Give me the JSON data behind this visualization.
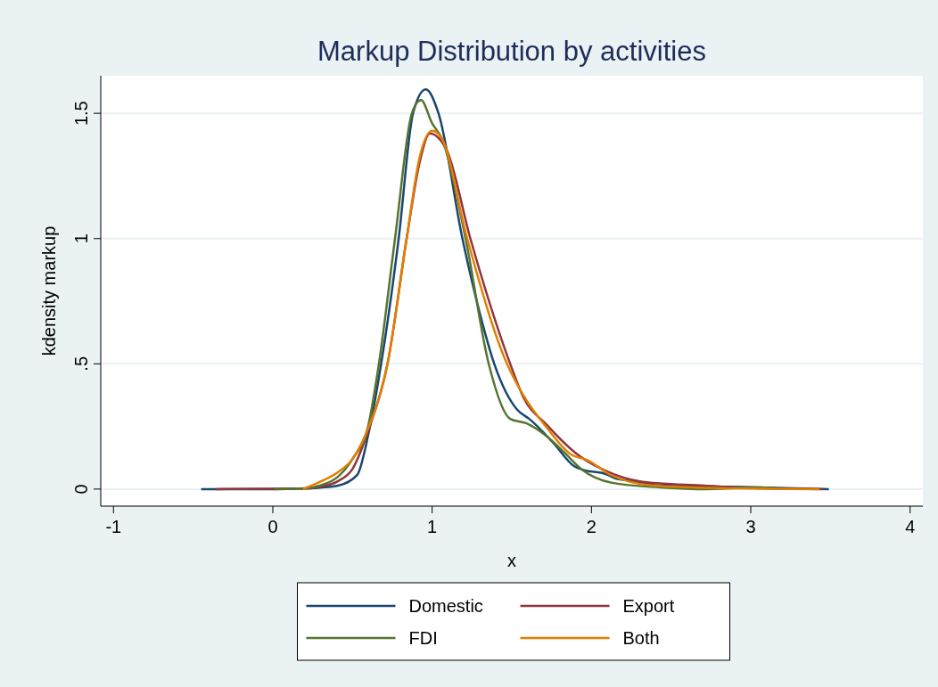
{
  "chart_data": {
    "type": "line",
    "title": "Markup Distribution by activities",
    "xlabel": "x",
    "ylabel": "kdensity markup",
    "xlim": [
      -1.08,
      4.08
    ],
    "xticks": [
      -1,
      0,
      1,
      2,
      3,
      4
    ],
    "ylim": [
      -0.068,
      1.65
    ],
    "yticks": [
      0,
      {
        "value": 0.5,
        "label": ".5"
      },
      1,
      1.5
    ],
    "grid": "y",
    "legend": "bottom",
    "line_style": "solid",
    "series": [
      {
        "name": "Domestic",
        "color": "#1a476f",
        "x": [
          -0.45,
          0,
          0.2,
          0.3,
          0.41,
          0.53,
          0.6,
          0.68,
          0.79,
          0.88,
          0.96,
          1.04,
          1.19,
          1.3,
          1.39,
          1.535,
          1.61,
          1.76,
          1.89,
          1.94,
          2.09,
          2.15,
          2.26,
          2.43,
          3.0,
          3.49
        ],
        "values": [
          0,
          0,
          0.002,
          0.006,
          0.014,
          0.057,
          0.22,
          0.5,
          1.0,
          1.5,
          1.596,
          1.5,
          1.0,
          0.7,
          0.5,
          0.316,
          0.28,
          0.185,
          0.092,
          0.078,
          0.06,
          0.043,
          0.032,
          0.014,
          0.008,
          0
        ]
      },
      {
        "name": "Export",
        "color": "#90353b",
        "x": [
          -0.36,
          0.2,
          0.3,
          0.41,
          0.5,
          0.6,
          0.72,
          0.84,
          0.92,
          0.985,
          1.09,
          1.24,
          1.49,
          1.57,
          1.72,
          1.91,
          2.15,
          2.37,
          2.71,
          2.89,
          3.45
        ],
        "values": [
          0,
          0.002,
          0.01,
          0.032,
          0.08,
          0.235,
          0.5,
          1.0,
          1.3,
          1.42,
          1.355,
          1.0,
          0.5,
          0.37,
          0.256,
          0.139,
          0.057,
          0.025,
          0.014,
          0.007,
          0
        ]
      },
      {
        "name": "FDI",
        "color": "#55752f",
        "x": [
          0.01,
          0.2,
          0.3,
          0.41,
          0.5,
          0.6,
          0.666,
          0.767,
          0.873,
          0.93,
          1.0,
          1.06,
          1.21,
          1.355,
          1.49,
          1.59,
          1.72,
          1.83,
          1.94,
          2.13,
          2.43,
          2.69,
          3.06,
          3.17
        ],
        "values": [
          0,
          0.003,
          0.015,
          0.05,
          0.12,
          0.256,
          0.5,
          1.0,
          1.5,
          1.553,
          1.46,
          1.4,
          1.0,
          0.5,
          0.28,
          0.263,
          0.21,
          0.146,
          0.078,
          0.025,
          0.007,
          0,
          0.007,
          0
        ]
      },
      {
        "name": "Both",
        "color": "#e37e00",
        "x": [
          0.19,
          0.3,
          0.41,
          0.5,
          0.6,
          0.72,
          0.84,
          0.92,
          1.0,
          1.06,
          1.22,
          1.47,
          1.57,
          1.72,
          1.87,
          1.98,
          2.11,
          2.39,
          2.8,
          3.43
        ],
        "values": [
          0,
          0.03,
          0.068,
          0.12,
          0.245,
          0.5,
          1.0,
          1.32,
          1.43,
          1.4,
          1.0,
          0.5,
          0.377,
          0.245,
          0.139,
          0.114,
          0.06,
          0.014,
          0.004,
          0
        ]
      }
    ]
  }
}
